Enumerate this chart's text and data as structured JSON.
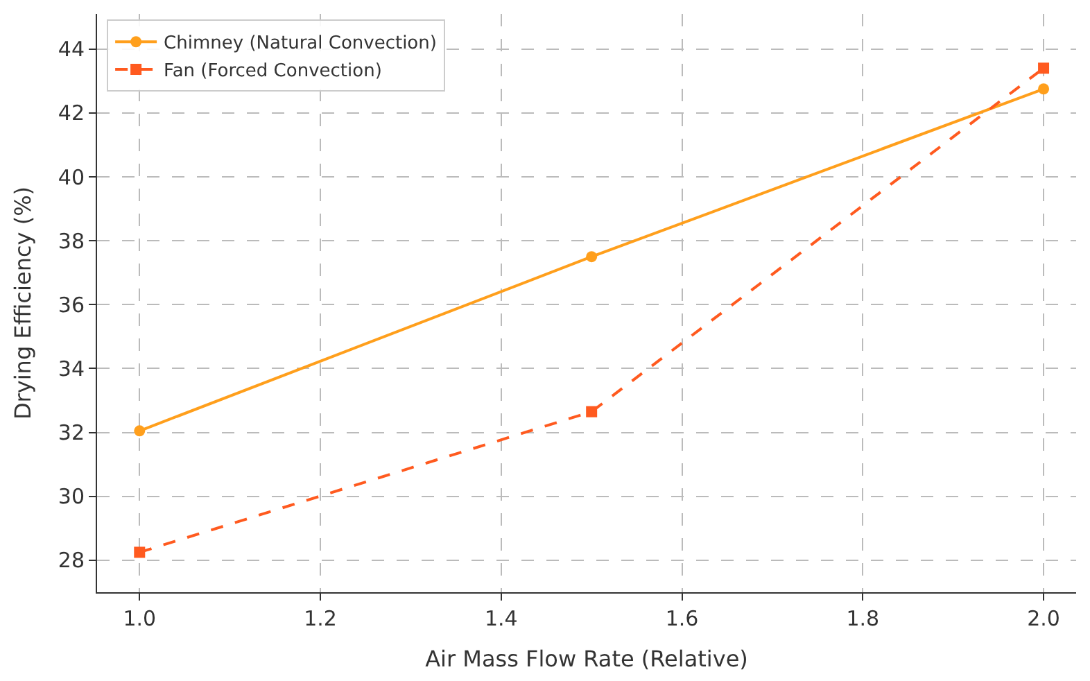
{
  "chart_data": {
    "type": "line",
    "xlabel": "Air Mass Flow Rate (Relative)",
    "ylabel": "Drying Efficiency (%)",
    "x": [
      1.0,
      1.5,
      2.0
    ],
    "series": [
      {
        "name": "Chimney (Natural Convection)",
        "color": "#ff9f1c",
        "values": [
          32.05,
          37.5,
          42.75
        ],
        "marker": "circle",
        "line_style": "solid"
      },
      {
        "name": "Fan (Forced Convection)",
        "color": "#ff5a1f",
        "values": [
          28.25,
          32.65,
          43.4
        ],
        "marker": "square",
        "line_style": "dashed"
      }
    ],
    "xlim": [
      0.953,
      2.036
    ],
    "ylim": [
      27.0,
      45.1
    ],
    "xticks": [
      {
        "value": 1.0,
        "label": "1.0"
      },
      {
        "value": 1.2,
        "label": "1.2"
      },
      {
        "value": 1.4,
        "label": "1.4"
      },
      {
        "value": 1.6,
        "label": "1.6"
      },
      {
        "value": 1.8,
        "label": "1.8"
      },
      {
        "value": 2.0,
        "label": "2.0"
      }
    ],
    "yticks": [
      28,
      30,
      32,
      34,
      36,
      38,
      40,
      42,
      44
    ],
    "grid": true,
    "legend": "top left"
  }
}
